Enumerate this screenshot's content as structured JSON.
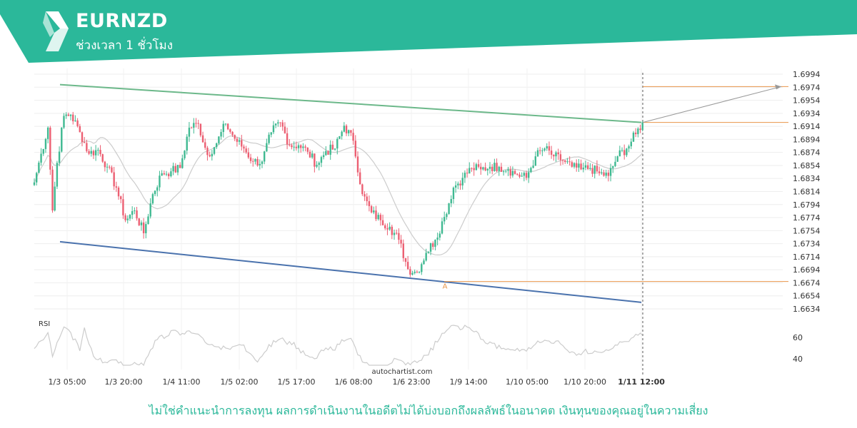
{
  "header": {
    "symbol": "EURNZD",
    "timeframe": "ช่วงเวลา 1 ชั่วโมง"
  },
  "colors": {
    "brand": "#2bb89a",
    "bull": "#3fb991",
    "bear": "#ec5f72",
    "resistance": "#6cb88a",
    "support": "#4a72ad",
    "level": "#e8954a",
    "ma": "#cccccc"
  },
  "chart_data": {
    "type": "candlestick",
    "instrument": "EURNZD",
    "ylim": [
      1.6624,
      1.7004
    ],
    "y_ticks": [
      "1.6994",
      "1.6974",
      "1.6954",
      "1.6934",
      "1.6914",
      "1.6894",
      "1.6874",
      "1.6854",
      "1.6834",
      "1.6814",
      "1.6794",
      "1.6774",
      "1.6754",
      "1.6734",
      "1.6714",
      "1.6694",
      "1.6674",
      "1.6654",
      "1.6634"
    ],
    "x_ticks": [
      "1/3 05:00",
      "1/3 20:00",
      "1/4 11:00",
      "1/5 02:00",
      "1/5 17:00",
      "1/6 08:00",
      "1/6 23:00",
      "1/9 14:00",
      "1/10 05:00",
      "1/10 20:00",
      "1/11 12:00"
    ],
    "highlight_tick": "1/11 12:00",
    "close_anchors": [
      [
        0,
        1.6828
      ],
      [
        3,
        1.6872
      ],
      [
        6,
        1.6912
      ],
      [
        8,
        1.6785
      ],
      [
        10,
        1.6858
      ],
      [
        13,
        1.693
      ],
      [
        16,
        1.6932
      ],
      [
        20,
        1.6905
      ],
      [
        24,
        1.6872
      ],
      [
        28,
        1.6878
      ],
      [
        32,
        1.6852
      ],
      [
        36,
        1.682
      ],
      [
        40,
        1.677
      ],
      [
        44,
        1.6785
      ],
      [
        48,
        1.675
      ],
      [
        52,
        1.681
      ],
      [
        56,
        1.6842
      ],
      [
        60,
        1.6845
      ],
      [
        64,
        1.685
      ],
      [
        68,
        1.6912
      ],
      [
        72,
        1.6918
      ],
      [
        76,
        1.687
      ],
      [
        80,
        1.6888
      ],
      [
        84,
        1.6918
      ],
      [
        88,
        1.6895
      ],
      [
        92,
        1.688
      ],
      [
        96,
        1.686
      ],
      [
        100,
        1.686
      ],
      [
        104,
        1.6905
      ],
      [
        108,
        1.692
      ],
      [
        112,
        1.6885
      ],
      [
        116,
        1.6885
      ],
      [
        120,
        1.6875
      ],
      [
        124,
        1.6855
      ],
      [
        128,
        1.6876
      ],
      [
        132,
        1.688
      ],
      [
        136,
        1.6915
      ],
      [
        140,
        1.6892
      ],
      [
        144,
        1.681
      ],
      [
        148,
        1.6782
      ],
      [
        152,
        1.677
      ],
      [
        156,
        1.676
      ],
      [
        160,
        1.674
      ],
      [
        164,
        1.6695
      ],
      [
        168,
        1.669
      ],
      [
        172,
        1.672
      ],
      [
        176,
        1.674
      ],
      [
        180,
        1.6775
      ],
      [
        184,
        1.682
      ],
      [
        188,
        1.6835
      ],
      [
        192,
        1.685
      ],
      [
        196,
        1.6848
      ],
      [
        200,
        1.6852
      ],
      [
        204,
        1.6852
      ],
      [
        208,
        1.6848
      ],
      [
        212,
        1.684
      ],
      [
        216,
        1.6835
      ],
      [
        220,
        1.6868
      ],
      [
        224,
        1.688
      ],
      [
        228,
        1.6868
      ],
      [
        232,
        1.6862
      ],
      [
        236,
        1.6852
      ],
      [
        240,
        1.6848
      ],
      [
        244,
        1.685
      ],
      [
        248,
        1.6842
      ],
      [
        252,
        1.6838
      ],
      [
        256,
        1.6868
      ],
      [
        260,
        1.688
      ],
      [
        264,
        1.6902
      ],
      [
        267,
        1.692
      ]
    ],
    "pattern": {
      "type": "descending channel",
      "resistance_line": {
        "start": [
          0,
          1.6978
        ],
        "end": [
          267,
          1.692
        ]
      },
      "support_line": {
        "start": [
          0,
          1.6737
        ],
        "end": [
          267,
          1.6644
        ]
      },
      "point_label": "A",
      "point_index": 174,
      "point_price": 1.6676
    },
    "levels": [
      1.6975,
      1.692,
      1.6676
    ],
    "projection": {
      "from": [
        267,
        1.692
      ],
      "to": [
        295,
        1.6975
      ]
    },
    "rsi": {
      "label": "RSI",
      "ticks": [
        "60",
        "40"
      ]
    },
    "watermark": "autochartist.com"
  },
  "disclaimer": "ไม่ใช่คำแนะนำการลงทุน ผลการดำเนินงานในอดีตไม่ได้บ่งบอกถึงผลลัพธ์ในอนาคต เงินทุนของคุณอยู่ในความเสี่ยง"
}
